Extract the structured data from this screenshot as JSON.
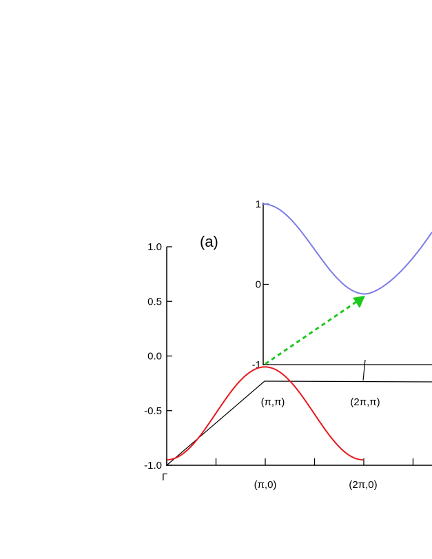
{
  "chart_data": {
    "type": "line",
    "panel_label": "(a)",
    "left_axis": {
      "ticks": [
        "1.0",
        "0.5",
        "0.0",
        "-0.5",
        "-1.0"
      ],
      "ylim": [
        -1.0,
        1.0
      ]
    },
    "inner_axis": {
      "ticks": [
        "1",
        "0",
        "-1"
      ],
      "ylim": [
        -1,
        1
      ]
    },
    "k_points": {
      "gamma": "Γ",
      "pi_0": "(π,0)",
      "two_pi_0": "(2π,0)",
      "pi_pi": "(π,π)",
      "two_pi_pi": "(2π,π)"
    },
    "series": [
      {
        "color": "#e8171d",
        "path": "Γ-(π,0)-(2π,0)",
        "x": [
          0,
          0.5,
          1,
          1.5,
          2
        ],
        "values": [
          -0.95,
          -0.4,
          -0.1,
          -0.4,
          -0.95
        ]
      },
      {
        "color": "#7b7be8",
        "path": "(π,π)-(2π,π)-...",
        "x": [
          0,
          0.5,
          1,
          1.5,
          2
        ],
        "values": [
          1.0,
          0.4,
          -0.12,
          0.2,
          0.65
        ]
      }
    ],
    "arrow": {
      "color": "#1ec81e",
      "style": "dashed",
      "from": "(π,π)",
      "to": "(2π,π)"
    }
  }
}
